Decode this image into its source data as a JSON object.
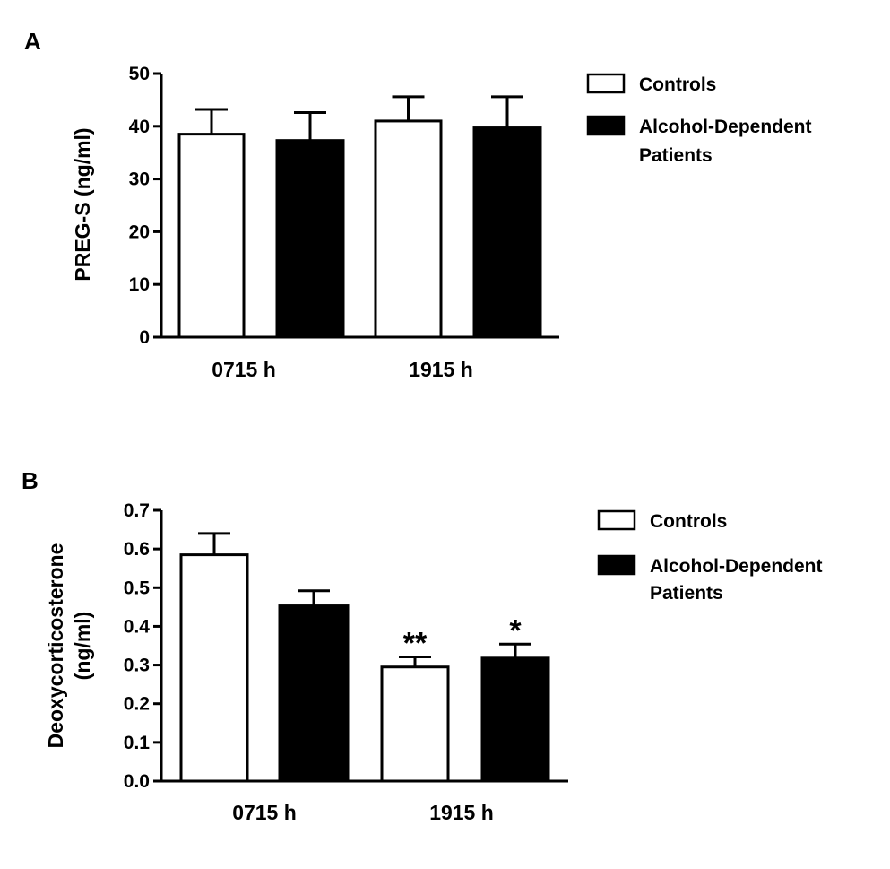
{
  "chart_data": [
    {
      "type": "bar",
      "panel_label": "A",
      "ylabel_lines": [
        "PREG-S (ng/ml)"
      ],
      "categories": [
        "0715 h",
        "1915 h"
      ],
      "ylim": [
        0,
        50
      ],
      "yticks": [
        0,
        10,
        20,
        30,
        40,
        50
      ],
      "tick_decimals": 0,
      "series": [
        {
          "name": "Controls",
          "color": "#ffffff",
          "values": [
            38.5,
            41.0
          ],
          "errors": [
            4.7,
            4.6
          ],
          "annotations": [
            "",
            ""
          ]
        },
        {
          "name": "Alcohol-Dependent Patients",
          "name_lines": [
            "Alcohol-Dependent",
            "Patients"
          ],
          "color": "#000000",
          "values": [
            37.3,
            39.7
          ],
          "errors": [
            5.3,
            5.9
          ],
          "annotations": [
            "",
            ""
          ]
        }
      ],
      "legend_placement": "top-right",
      "grid": false
    },
    {
      "type": "bar",
      "panel_label": "B",
      "ylabel_lines": [
        "Deoxycorticosterone",
        "(ng/ml)"
      ],
      "categories": [
        "0715 h",
        "1915 h"
      ],
      "ylim": [
        0,
        0.7
      ],
      "yticks": [
        0.0,
        0.1,
        0.2,
        0.3,
        0.4,
        0.5,
        0.6,
        0.7
      ],
      "tick_decimals": 1,
      "series": [
        {
          "name": "Controls",
          "color": "#ffffff",
          "values": [
            0.585,
            0.295
          ],
          "errors": [
            0.055,
            0.026
          ],
          "annotations": [
            "",
            "**"
          ]
        },
        {
          "name": "Alcohol-Dependent Patients",
          "name_lines": [
            "Alcohol-Dependent",
            "Patients"
          ],
          "color": "#000000",
          "values": [
            0.453,
            0.318
          ],
          "errors": [
            0.039,
            0.036
          ],
          "annotations": [
            "",
            "*"
          ]
        }
      ],
      "legend_placement": "top-right",
      "grid": false
    }
  ]
}
